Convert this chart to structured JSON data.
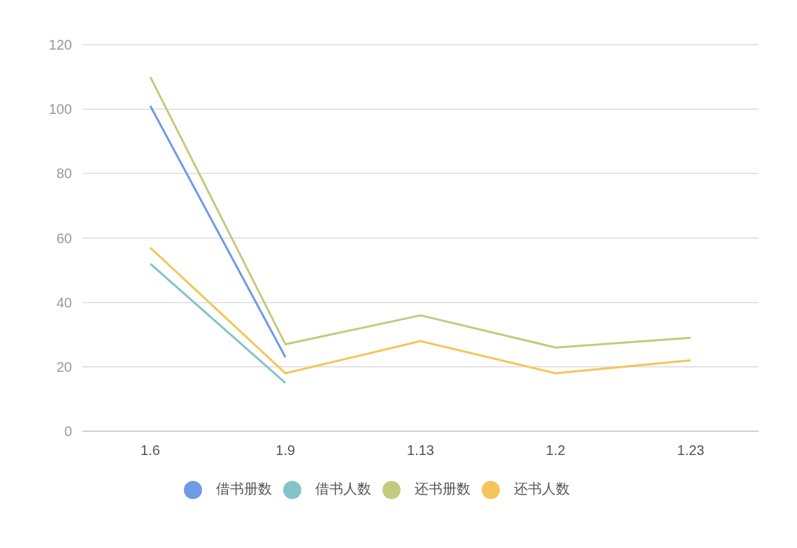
{
  "chart_data": {
    "type": "line",
    "categories": [
      "1.6",
      "1.9",
      "1.13",
      "1.2",
      "1.23"
    ],
    "series": [
      {
        "name": "借书册数",
        "color": "#6f9ae6",
        "values": [
          101,
          23,
          null,
          null,
          null
        ]
      },
      {
        "name": "借书人数",
        "color": "#84c3c7",
        "values": [
          52,
          15,
          null,
          null,
          null
        ]
      },
      {
        "name": "还书册数",
        "color": "#c5c97f",
        "values": [
          110,
          27,
          36,
          26,
          29
        ]
      },
      {
        "name": "还书人数",
        "color": "#f4c55a",
        "values": [
          57,
          18,
          28,
          18,
          22
        ]
      }
    ],
    "ylim": [
      0,
      120
    ],
    "yticks": [
      0,
      20,
      40,
      60,
      80,
      100,
      120
    ],
    "grid": "y",
    "legend": "bottom",
    "marker": "none",
    "line_style": "solid"
  }
}
